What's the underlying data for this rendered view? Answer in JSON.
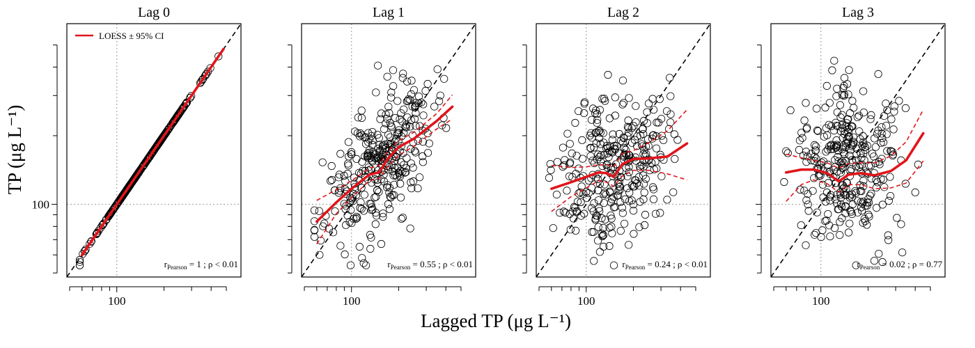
{
  "figure": {
    "ylabel": "TP (μg L⁻¹)",
    "xlabel": "Lagged TP (μg L⁻¹)",
    "legend_label": "LOESS ± 95% CI"
  },
  "colors": {
    "points": "#000000",
    "loess": "#e0151b",
    "identity": "#000000",
    "reference": "#b0b0b0"
  },
  "chart_data": [
    {
      "type": "scatter",
      "title": "Lag 0",
      "x_scale": "log",
      "y_scale": "log",
      "xlim": [
        48,
        620
      ],
      "ylim": [
        48,
        620
      ],
      "x_ticks": [
        100
      ],
      "y_ticks": [
        100
      ],
      "reference_lines": {
        "x": 100,
        "y": 100
      },
      "identity_line": true,
      "legend": {
        "label": "LOESS ± 95% CI",
        "placement": "top-left"
      },
      "stats": {
        "r_main": "r",
        "r_sub": "Pearson",
        "text": " = 1 ; ρ < 0.01"
      },
      "points_seed": 11,
      "n_points": 330,
      "r": 1.0,
      "loess": [
        [
          60,
          60
        ],
        [
          100,
          100
        ],
        [
          150,
          150
        ],
        [
          250,
          250
        ],
        [
          350,
          350
        ],
        [
          480,
          480
        ]
      ],
      "ci_upper": [
        [
          60,
          61
        ],
        [
          100,
          101
        ],
        [
          150,
          151
        ],
        [
          250,
          252
        ],
        [
          350,
          352
        ],
        [
          480,
          484
        ]
      ],
      "ci_lower": [
        [
          60,
          59
        ],
        [
          100,
          99
        ],
        [
          150,
          149
        ],
        [
          250,
          248
        ],
        [
          350,
          348
        ],
        [
          480,
          476
        ]
      ]
    },
    {
      "type": "scatter",
      "title": "Lag 1",
      "x_scale": "log",
      "y_scale": "log",
      "xlim": [
        48,
        620
      ],
      "ylim": [
        48,
        620
      ],
      "x_ticks": [
        100
      ],
      "y_ticks": [
        100
      ],
      "reference_lines": {
        "x": 100,
        "y": 100
      },
      "identity_line": true,
      "stats": {
        "r_main": "r",
        "r_sub": "Pearson",
        "text": " = 0.55 ; ρ < 0.01"
      },
      "points_seed": 23,
      "n_points": 330,
      "r": 0.55,
      "loess": [
        [
          60,
          84
        ],
        [
          80,
          102
        ],
        [
          100,
          117
        ],
        [
          130,
          135
        ],
        [
          150,
          138
        ],
        [
          170,
          158
        ],
        [
          200,
          178
        ],
        [
          250,
          194
        ],
        [
          350,
          232
        ],
        [
          440,
          268
        ]
      ],
      "ci_upper": [
        [
          60,
          104
        ],
        [
          80,
          116
        ],
        [
          100,
          127
        ],
        [
          130,
          144
        ],
        [
          150,
          148
        ],
        [
          170,
          171
        ],
        [
          200,
          190
        ],
        [
          250,
          207
        ],
        [
          350,
          250
        ],
        [
          440,
          302
        ]
      ],
      "ci_lower": [
        [
          60,
          67
        ],
        [
          80,
          91
        ],
        [
          100,
          107
        ],
        [
          130,
          127
        ],
        [
          150,
          130
        ],
        [
          170,
          146
        ],
        [
          200,
          164
        ],
        [
          250,
          180
        ],
        [
          350,
          214
        ],
        [
          440,
          237
        ]
      ]
    },
    {
      "type": "scatter",
      "title": "Lag 2",
      "x_scale": "log",
      "y_scale": "log",
      "xlim": [
        48,
        620
      ],
      "ylim": [
        48,
        620
      ],
      "x_ticks": [
        100
      ],
      "y_ticks": [
        100
      ],
      "reference_lines": {
        "x": 100,
        "y": 100
      },
      "identity_line": true,
      "stats": {
        "r_main": "r",
        "r_sub": "Pearson",
        "text": " = 0.24 ; ρ < 0.01"
      },
      "points_seed": 37,
      "n_points": 320,
      "r": 0.24,
      "loess": [
        [
          60,
          117
        ],
        [
          80,
          125
        ],
        [
          100,
          132
        ],
        [
          120,
          138
        ],
        [
          135,
          137
        ],
        [
          150,
          132
        ],
        [
          170,
          150
        ],
        [
          200,
          158
        ],
        [
          250,
          159
        ],
        [
          330,
          162
        ],
        [
          440,
          185
        ]
      ],
      "ci_upper": [
        [
          60,
          148
        ],
        [
          80,
          145
        ],
        [
          100,
          146
        ],
        [
          120,
          149
        ],
        [
          135,
          149
        ],
        [
          150,
          146
        ],
        [
          170,
          167
        ],
        [
          200,
          172
        ],
        [
          250,
          186
        ],
        [
          330,
          210
        ],
        [
          440,
          260
        ]
      ],
      "ci_lower": [
        [
          60,
          93
        ],
        [
          80,
          108
        ],
        [
          100,
          118
        ],
        [
          120,
          127
        ],
        [
          135,
          125
        ],
        [
          150,
          120
        ],
        [
          170,
          133
        ],
        [
          200,
          141
        ],
        [
          250,
          141
        ],
        [
          330,
          136
        ],
        [
          440,
          128
        ]
      ]
    },
    {
      "type": "scatter",
      "title": "Lag 3",
      "x_scale": "log",
      "y_scale": "log",
      "xlim": [
        48,
        620
      ],
      "ylim": [
        48,
        620
      ],
      "x_ticks": [
        100
      ],
      "y_ticks": [
        100
      ],
      "reference_lines": {
        "x": 100,
        "y": 100
      },
      "identity_line": true,
      "stats": {
        "r_main": "r",
        "r_sub": "Pearson",
        "text": " = 0.02 ; ρ  = 0.77"
      },
      "points_seed": 41,
      "n_points": 330,
      "r": 0.02,
      "loess": [
        [
          60,
          138
        ],
        [
          75,
          142
        ],
        [
          90,
          142
        ],
        [
          110,
          137
        ],
        [
          130,
          126
        ],
        [
          150,
          135
        ],
        [
          180,
          137
        ],
        [
          220,
          134
        ],
        [
          280,
          140
        ],
        [
          350,
          156
        ],
        [
          450,
          205
        ]
      ],
      "ci_upper": [
        [
          60,
          166
        ],
        [
          75,
          160
        ],
        [
          90,
          156
        ],
        [
          110,
          152
        ],
        [
          130,
          144
        ],
        [
          150,
          151
        ],
        [
          180,
          152
        ],
        [
          220,
          152
        ],
        [
          280,
          163
        ],
        [
          350,
          188
        ],
        [
          450,
          260
        ]
      ],
      "ci_lower": [
        [
          60,
          103
        ],
        [
          75,
          122
        ],
        [
          90,
          128
        ],
        [
          110,
          123
        ],
        [
          130,
          113
        ],
        [
          150,
          122
        ],
        [
          180,
          122
        ],
        [
          220,
          117
        ],
        [
          280,
          118
        ],
        [
          350,
          124
        ],
        [
          450,
          155
        ]
      ]
    }
  ]
}
